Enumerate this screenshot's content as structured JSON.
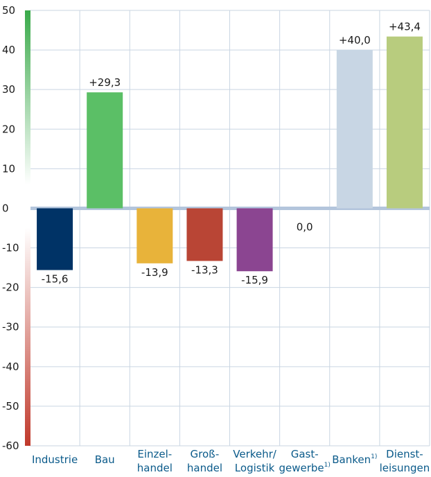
{
  "chart_data": {
    "type": "bar",
    "categories": [
      {
        "lines": [
          "Industrie"
        ]
      },
      {
        "lines": [
          "Bau"
        ]
      },
      {
        "lines": [
          "Einzel-",
          "handel"
        ]
      },
      {
        "lines": [
          "Groß-",
          "handel"
        ]
      },
      {
        "lines": [
          "Verkehr/",
          "Logistik"
        ]
      },
      {
        "lines": [
          "Gast-",
          "gewerbe"
        ],
        "footnote": "1)"
      },
      {
        "lines": [
          "Banken"
        ],
        "footnote": "1)"
      },
      {
        "lines": [
          "Dienst-",
          "leisungen"
        ]
      }
    ],
    "values": [
      -15.6,
      29.3,
      -13.9,
      -13.3,
      -15.9,
      0.0,
      40.0,
      43.4
    ],
    "value_labels": [
      "-15,6",
      "+29,3",
      "-13,9",
      "-13,3",
      "-15,9",
      "0,0",
      "+40,0",
      "+43,4"
    ],
    "bar_colors": [
      "#003366",
      "#5bbf66",
      "#e8b33a",
      "#b94535",
      "#8b4591",
      "#c8d6e4",
      "#c8d6e4",
      "#b8cc7e"
    ],
    "yticks": [
      50,
      40,
      30,
      20,
      10,
      0,
      -10,
      -20,
      -30,
      -40,
      -50,
      -60
    ],
    "ytick_labels": [
      "50",
      "40",
      "30",
      "20",
      "10",
      "0",
      "-10",
      "-20",
      "-30",
      "-40",
      "-50",
      "-60"
    ],
    "ylim": [
      -60,
      50
    ],
    "grid": true,
    "colors": {
      "grid": "#c9d5e2",
      "zero_line": "#b3c5dc",
      "axis_positive": "#3aaa4a",
      "axis_negative": "#c0392b",
      "category_text": "#0a5a8a"
    },
    "title": "",
    "xlabel": "",
    "ylabel": ""
  }
}
